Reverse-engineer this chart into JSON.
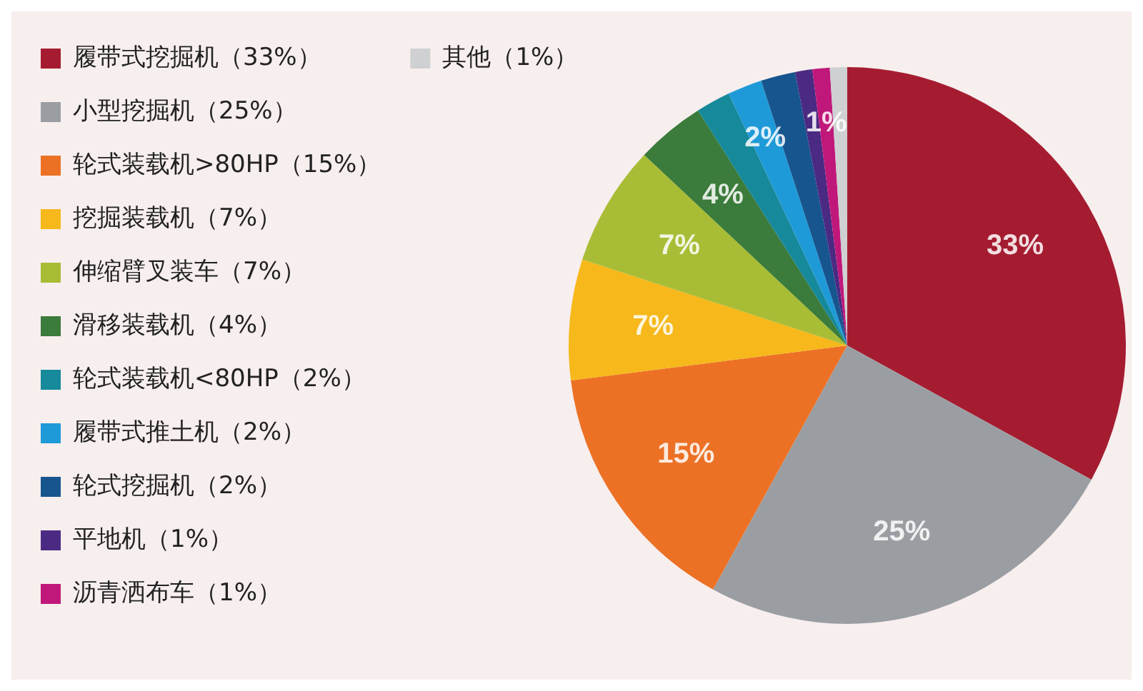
{
  "chart_data": {
    "type": "pie",
    "categories": [
      "履带式挖掘机（33%）",
      "小型挖掘机（25%）",
      "轮式装载机>80HP（15%）",
      "挖掘装载机（7%）",
      "伸缩臂叉装车（7%）",
      "滑移装载机（4%）",
      "轮式装载机<80HP（2%）",
      "履带式推土机（2%）",
      "轮式挖掘机（2%）",
      "平地机（1%）",
      "沥青洒布车（1%）",
      "其他（1%）"
    ],
    "values": [
      33,
      25,
      15,
      7,
      7,
      4,
      2,
      2,
      2,
      1,
      1,
      1
    ],
    "colors": [
      "#a51c30",
      "#9a9ea3",
      "#ec7125",
      "#f6b81b",
      "#a8bd35",
      "#3b7b3b",
      "#16899a",
      "#1f9ad8",
      "#17558e",
      "#4b2a83",
      "#c0187a",
      "#cfd0d2"
    ],
    "value_labels": [
      "33%",
      "25%",
      "15%",
      "7%",
      "7%",
      "4%",
      null,
      "2%",
      null,
      null,
      "1%",
      null
    ],
    "legend": "left"
  }
}
